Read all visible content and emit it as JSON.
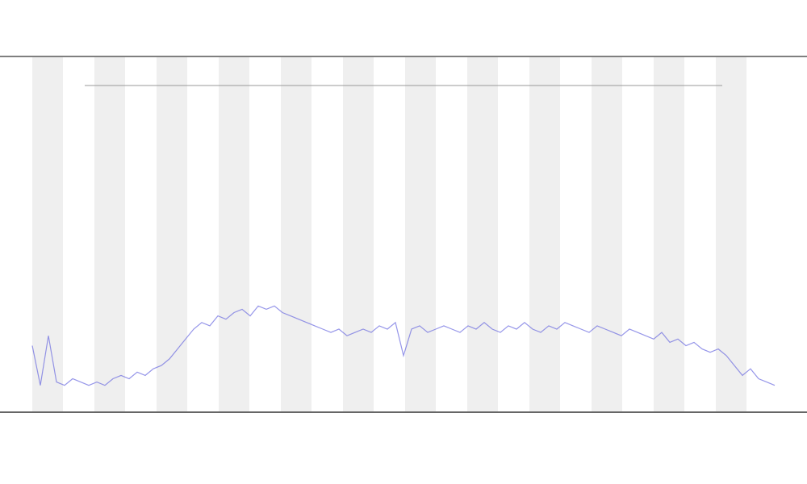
{
  "chart_data": {
    "type": "line",
    "color": "#6a6ae0",
    "values": [
      15,
      3,
      18,
      4,
      3,
      5,
      4,
      3,
      4,
      3,
      5,
      6,
      5,
      7,
      6,
      8,
      9,
      11,
      14,
      17,
      20,
      22,
      21,
      24,
      23,
      25,
      26,
      24,
      27,
      26,
      27,
      25,
      24,
      23,
      22,
      21,
      20,
      19,
      20,
      18,
      19,
      20,
      19,
      21,
      20,
      22,
      12,
      20,
      21,
      19,
      20,
      21,
      20,
      19,
      21,
      20,
      22,
      20,
      19,
      21,
      20,
      22,
      20,
      19,
      21,
      20,
      22,
      21,
      20,
      19,
      21,
      20,
      19,
      18,
      20,
      19,
      18,
      17,
      19,
      16,
      17,
      15,
      16,
      14,
      13,
      14,
      12,
      9,
      6,
      8,
      5,
      4,
      3
    ],
    "ylim": [
      0,
      100
    ]
  }
}
